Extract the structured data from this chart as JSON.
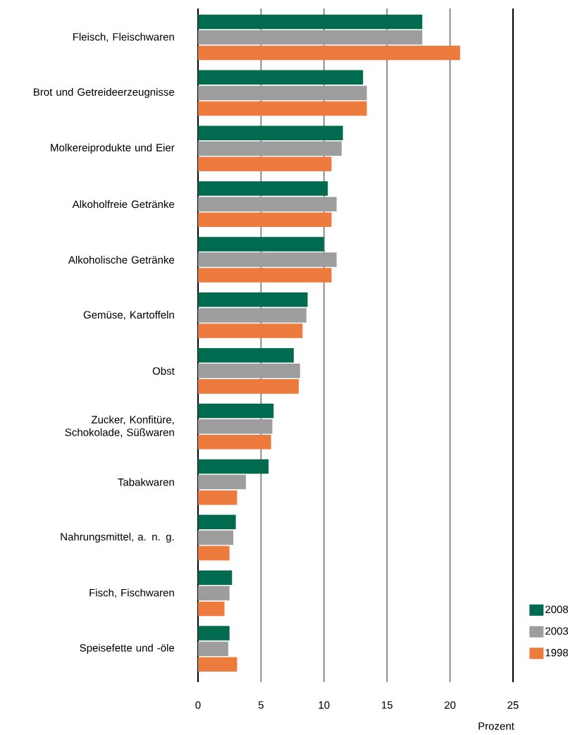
{
  "chart_data": {
    "type": "bar",
    "orientation": "horizontal",
    "categories": [
      "Fleisch, Fleischwaren",
      "Brot und Getreideerzeugnisse",
      "Molkereiprodukte und Eier",
      "Alkoholfreie Getränke",
      "Alkoholische Getränke",
      "Gemüse, Kartoffeln",
      "Obst",
      "Zucker, Konfitüre, Schokolade, Süßwaren",
      "Tabakwaren",
      "Nahrungsmittel, a. n. g.",
      "Fisch, Fischwaren",
      "Speisefette und -öle"
    ],
    "series": [
      {
        "name": "2008",
        "color": "#006b4e",
        "values": [
          17.8,
          13.1,
          11.5,
          10.3,
          10.0,
          8.7,
          7.6,
          6.0,
          5.6,
          3.0,
          2.7,
          2.5
        ]
      },
      {
        "name": "2003",
        "color": "#9d9d9e",
        "values": [
          17.8,
          13.4,
          11.4,
          11.0,
          11.0,
          8.6,
          8.1,
          5.9,
          3.8,
          2.8,
          2.5,
          2.4
        ]
      },
      {
        "name": "1998",
        "color": "#ed7b3e",
        "values": [
          20.8,
          13.4,
          10.6,
          10.6,
          10.6,
          8.3,
          8.0,
          5.8,
          3.1,
          2.5,
          2.1,
          3.1
        ]
      }
    ],
    "xlabel": "Prozent",
    "xlim": [
      0,
      25
    ],
    "xticks": [
      0,
      5,
      10,
      15,
      20,
      25
    ],
    "grid": "x",
    "legend": "bottom right"
  }
}
